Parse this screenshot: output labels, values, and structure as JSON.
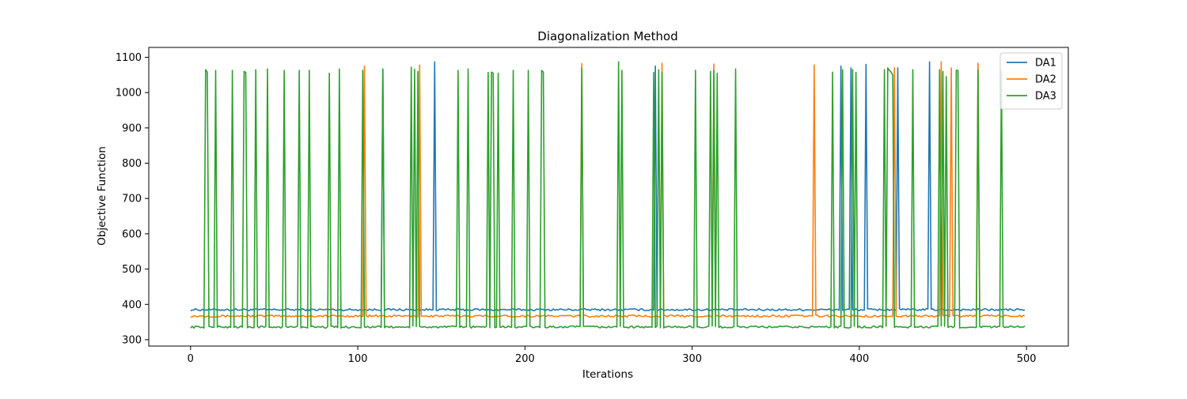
{
  "chart_data": {
    "type": "line",
    "title": "Diagonalization Method",
    "xlabel": "Iterations",
    "ylabel": "Objective Function",
    "xlim": [
      -25,
      525
    ],
    "ylim": [
      282,
      1128
    ],
    "xticks": [
      0,
      100,
      200,
      300,
      400,
      500
    ],
    "yticks": [
      300,
      400,
      500,
      600,
      700,
      800,
      900,
      1000,
      1100
    ],
    "grid": false,
    "legend_position": "top-right",
    "n_points": 500,
    "series": [
      {
        "name": "DA1",
        "color": "#1f77b4",
        "baseline": 385,
        "noise": 3,
        "spikes": [
          [
            115,
            1067
          ],
          [
            146,
            1087
          ],
          [
            278,
            1075
          ],
          [
            389,
            1075
          ],
          [
            395,
            1070
          ],
          [
            404,
            1080
          ],
          [
            423,
            1070
          ],
          [
            442,
            1087
          ]
        ]
      },
      {
        "name": "DA2",
        "color": "#ff7f0e",
        "baseline": 367,
        "noise": 3,
        "spikes": [
          [
            104,
            1075
          ],
          [
            137,
            1078
          ],
          [
            234,
            1082
          ],
          [
            282,
            1083
          ],
          [
            313,
            1081
          ],
          [
            373,
            1078
          ],
          [
            421,
            1070
          ],
          [
            449,
            1087
          ],
          [
            455,
            1070
          ],
          [
            471,
            1083
          ]
        ]
      },
      {
        "name": "DA3",
        "color": "#2ca02c",
        "baseline": 336,
        "noise": 3,
        "spikes": [
          [
            9,
            1065
          ],
          [
            10,
            1058
          ],
          [
            15,
            1063
          ],
          [
            25,
            1063
          ],
          [
            32,
            1060
          ],
          [
            33,
            1057
          ],
          [
            39,
            1065
          ],
          [
            46,
            1067
          ],
          [
            56,
            1063
          ],
          [
            65,
            1063
          ],
          [
            71,
            1063
          ],
          [
            83,
            1055
          ],
          [
            89,
            1067
          ],
          [
            103,
            1063
          ],
          [
            115,
            1065
          ],
          [
            132,
            1072
          ],
          [
            134,
            1066
          ],
          [
            136,
            1060
          ],
          [
            160,
            1063
          ],
          [
            166,
            1067
          ],
          [
            178,
            1057
          ],
          [
            180,
            1058
          ],
          [
            181,
            1055
          ],
          [
            184,
            1055
          ],
          [
            193,
            1063
          ],
          [
            202,
            1063
          ],
          [
            210,
            1063
          ],
          [
            211,
            1058
          ],
          [
            234,
            1070
          ],
          [
            256,
            1087
          ],
          [
            258,
            1063
          ],
          [
            277,
            1057
          ],
          [
            280,
            1065
          ],
          [
            282,
            1057
          ],
          [
            302,
            1063
          ],
          [
            311,
            1060
          ],
          [
            313,
            1063
          ],
          [
            315,
            1055
          ],
          [
            326,
            1067
          ],
          [
            384,
            1058
          ],
          [
            390,
            1065
          ],
          [
            396,
            1065
          ],
          [
            398,
            1057
          ],
          [
            415,
            1065
          ],
          [
            417,
            1070
          ],
          [
            418,
            1063
          ],
          [
            419,
            1058
          ],
          [
            420,
            1050
          ],
          [
            432,
            1065
          ],
          [
            448,
            1065
          ],
          [
            450,
            1060
          ],
          [
            452,
            1045
          ],
          [
            458,
            1063
          ],
          [
            459,
            1063
          ],
          [
            471,
            1065
          ],
          [
            485,
            1062
          ]
        ]
      }
    ]
  }
}
